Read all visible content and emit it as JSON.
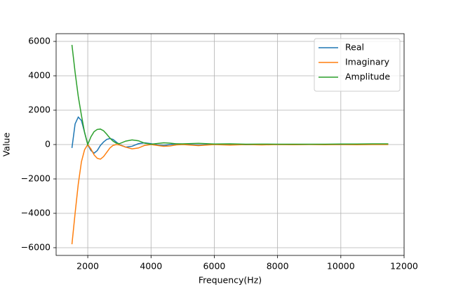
{
  "chart_data": {
    "type": "line",
    "xlabel": "Frequency(Hz)",
    "ylabel": "Value",
    "x": [
      1500,
      1600,
      1700,
      1800,
      1900,
      2000,
      2100,
      2200,
      2300,
      2400,
      2500,
      2600,
      2700,
      2800,
      2900,
      3000,
      3200,
      3400,
      3600,
      3800,
      4000,
      4200,
      4400,
      4600,
      4800,
      5000,
      5500,
      6000,
      6500,
      7000,
      7500,
      8000,
      8500,
      9000,
      9500,
      10000,
      10500,
      11000,
      11500
    ],
    "series": [
      {
        "name": "Real",
        "color": "#1f77b4",
        "values": [
          -200,
          1200,
          1600,
          1400,
          700,
          0,
          -350,
          -500,
          -350,
          -50,
          150,
          300,
          350,
          300,
          150,
          0,
          -150,
          -100,
          50,
          100,
          50,
          -20,
          -50,
          0,
          40,
          30,
          -30,
          20,
          20,
          -10,
          10,
          10,
          0,
          10,
          10,
          0,
          10,
          10,
          10
        ]
      },
      {
        "name": "Imaginary",
        "color": "#ff7f0e",
        "values": [
          -5800,
          -4000,
          -2300,
          -1000,
          -300,
          0,
          -250,
          -600,
          -800,
          -850,
          -700,
          -450,
          -200,
          -50,
          0,
          -20,
          -150,
          -250,
          -200,
          -50,
          0,
          -50,
          -100,
          -80,
          -20,
          0,
          -60,
          0,
          -30,
          0,
          -20,
          0,
          -10,
          0,
          -10,
          0,
          -10,
          0,
          0
        ]
      },
      {
        "name": "Amplitude",
        "color": "#2ca02c",
        "values": [
          5800,
          4200,
          2800,
          1700,
          700,
          0,
          450,
          750,
          880,
          900,
          800,
          600,
          380,
          200,
          80,
          50,
          200,
          270,
          220,
          80,
          20,
          60,
          100,
          80,
          40,
          40,
          70,
          30,
          40,
          20,
          25,
          20,
          20,
          20,
          20,
          30,
          30,
          40,
          40
        ]
      }
    ],
    "xlim": [
      1000,
      12000
    ],
    "xticks": [
      2000,
      4000,
      6000,
      8000,
      10000,
      12000
    ],
    "ylim": [
      -6450,
      6450
    ],
    "yticks": [
      {
        "value": -6000,
        "label": "−6000"
      },
      {
        "value": -4000,
        "label": "−4000"
      },
      {
        "value": -2000,
        "label": "−2000"
      },
      0,
      2000,
      4000,
      6000
    ],
    "grid": true,
    "legend": "upper-right"
  }
}
